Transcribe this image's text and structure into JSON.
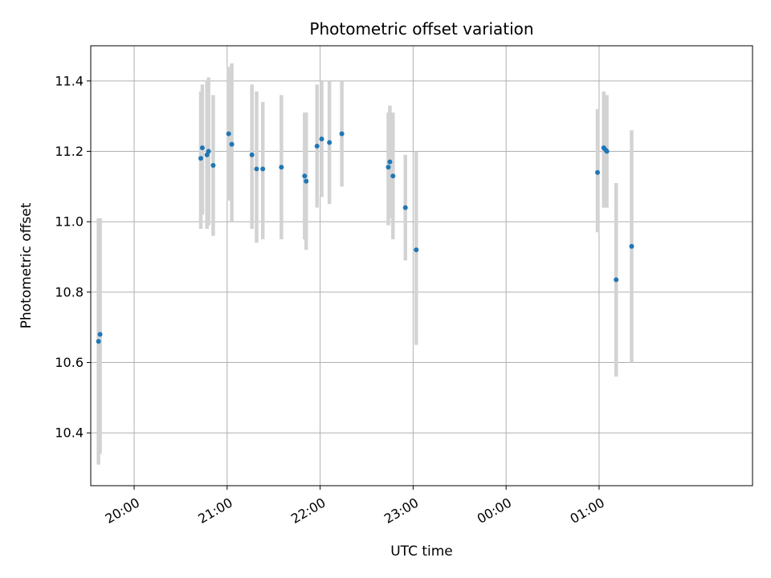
{
  "chart_data": {
    "type": "scatter",
    "title": "Photometric offset variation",
    "xlabel": "UTC time",
    "ylabel": "Photometric offset",
    "x_ticks": [
      "20:00",
      "21:00",
      "22:00",
      "23:00",
      "00:00",
      "01:00"
    ],
    "y_ticks": [
      "10.4",
      "10.6",
      "10.8",
      "11.0",
      "11.2",
      "11.4"
    ],
    "xlim": [
      "19:32",
      "02:39"
    ],
    "ylim": [
      10.25,
      11.5
    ],
    "grid": true,
    "point_color": "#1f77b4",
    "errorbar_color": "#d3d3d3",
    "points": [
      {
        "t": "19:37",
        "y": 10.66,
        "lo": 10.31,
        "hi": 11.01
      },
      {
        "t": "19:38",
        "y": 10.68,
        "lo": 10.34,
        "hi": 11.01
      },
      {
        "t": "20:43",
        "y": 11.18,
        "lo": 10.98,
        "hi": 11.37
      },
      {
        "t": "20:44",
        "y": 11.21,
        "lo": 11.02,
        "hi": 11.39
      },
      {
        "t": "20:47",
        "y": 11.19,
        "lo": 10.98,
        "hi": 11.4
      },
      {
        "t": "20:48",
        "y": 11.2,
        "lo": 10.99,
        "hi": 11.41
      },
      {
        "t": "20:51",
        "y": 11.16,
        "lo": 10.96,
        "hi": 11.36
      },
      {
        "t": "21:01",
        "y": 11.25,
        "lo": 11.06,
        "hi": 11.44
      },
      {
        "t": "21:03",
        "y": 11.22,
        "lo": 11.0,
        "hi": 11.45
      },
      {
        "t": "21:16",
        "y": 11.19,
        "lo": 10.98,
        "hi": 11.39
      },
      {
        "t": "21:19",
        "y": 11.15,
        "lo": 10.94,
        "hi": 11.37
      },
      {
        "t": "21:23",
        "y": 11.15,
        "lo": 10.95,
        "hi": 11.34
      },
      {
        "t": "21:35",
        "y": 11.155,
        "lo": 10.95,
        "hi": 11.36
      },
      {
        "t": "21:50",
        "y": 11.13,
        "lo": 10.95,
        "hi": 11.31
      },
      {
        "t": "21:51",
        "y": 11.115,
        "lo": 10.92,
        "hi": 11.31
      },
      {
        "t": "21:58",
        "y": 11.215,
        "lo": 11.04,
        "hi": 11.39
      },
      {
        "t": "22:01",
        "y": 11.235,
        "lo": 11.07,
        "hi": 11.4
      },
      {
        "t": "22:06",
        "y": 11.225,
        "lo": 11.05,
        "hi": 11.4
      },
      {
        "t": "22:14",
        "y": 11.25,
        "lo": 11.1,
        "hi": 11.4
      },
      {
        "t": "22:44",
        "y": 11.155,
        "lo": 10.99,
        "hi": 11.31
      },
      {
        "t": "22:45",
        "y": 11.17,
        "lo": 11.01,
        "hi": 11.33
      },
      {
        "t": "22:47",
        "y": 11.13,
        "lo": 10.95,
        "hi": 11.31
      },
      {
        "t": "22:55",
        "y": 11.04,
        "lo": 10.89,
        "hi": 11.19
      },
      {
        "t": "23:02",
        "y": 10.92,
        "lo": 10.65,
        "hi": 11.2
      },
      {
        "t": "00:59",
        "y": 11.14,
        "lo": 10.97,
        "hi": 11.32
      },
      {
        "t": "01:03",
        "y": 11.21,
        "lo": 11.04,
        "hi": 11.37
      },
      {
        "t": "01:04",
        "y": 11.205,
        "lo": 11.04,
        "hi": 11.36
      },
      {
        "t": "01:05",
        "y": 11.2,
        "lo": 11.04,
        "hi": 11.36
      },
      {
        "t": "01:11",
        "y": 10.835,
        "lo": 10.56,
        "hi": 11.11
      },
      {
        "t": "01:21",
        "y": 10.93,
        "lo": 10.6,
        "hi": 11.26
      }
    ]
  }
}
